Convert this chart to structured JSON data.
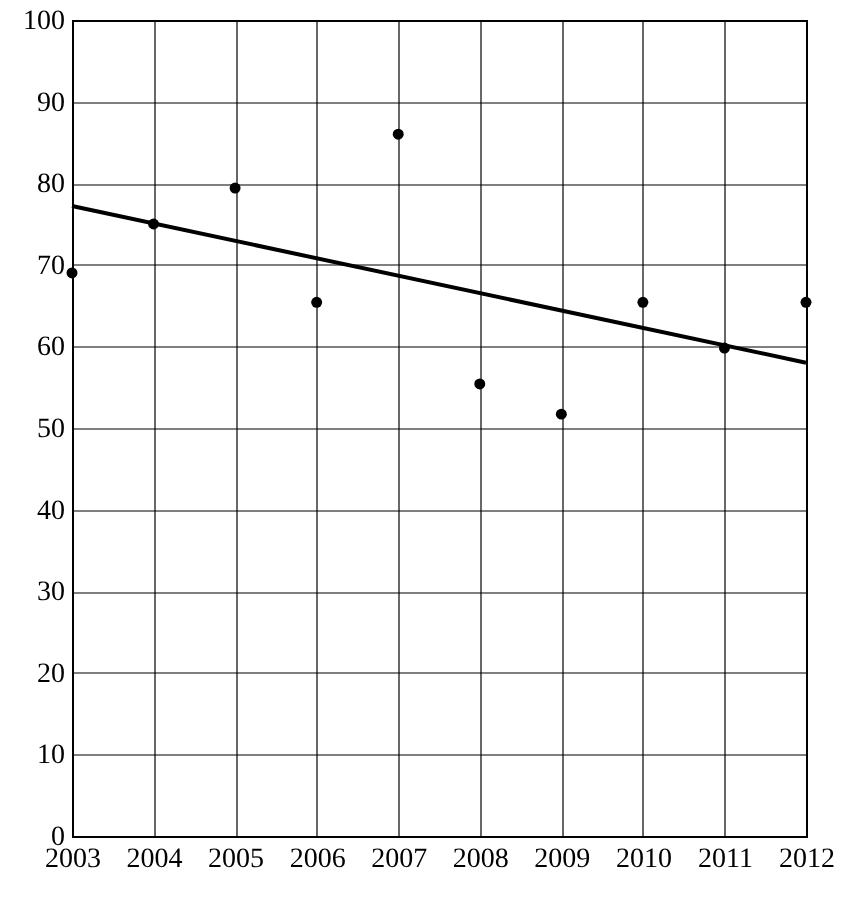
{
  "chart_data": {
    "type": "scatter",
    "x": [
      2003,
      2004,
      2005,
      2006,
      2007,
      2008,
      2009,
      2010,
      2011,
      2012
    ],
    "series": [
      {
        "color": "#000000",
        "marker": "circle",
        "values": [
          69,
          75,
          79.4,
          65.4,
          86,
          55.4,
          51.7,
          65.4,
          59.8,
          65.4
        ]
      },
      {
        "type": "line",
        "color": "#000000",
        "marker": "none",
        "x": [
          2003,
          2012
        ],
        "values": [
          77.2,
          58
        ]
      }
    ],
    "xlim": [
      2003,
      2012
    ],
    "xticks": [
      2003,
      2004,
      2005,
      2006,
      2007,
      2008,
      2009,
      2010,
      2011,
      2012
    ],
    "ylim": [
      0,
      100
    ],
    "yticks": [
      0,
      10,
      20,
      30,
      40,
      50,
      60,
      70,
      80,
      90,
      100
    ],
    "grid": true,
    "line_style": "solid"
  }
}
